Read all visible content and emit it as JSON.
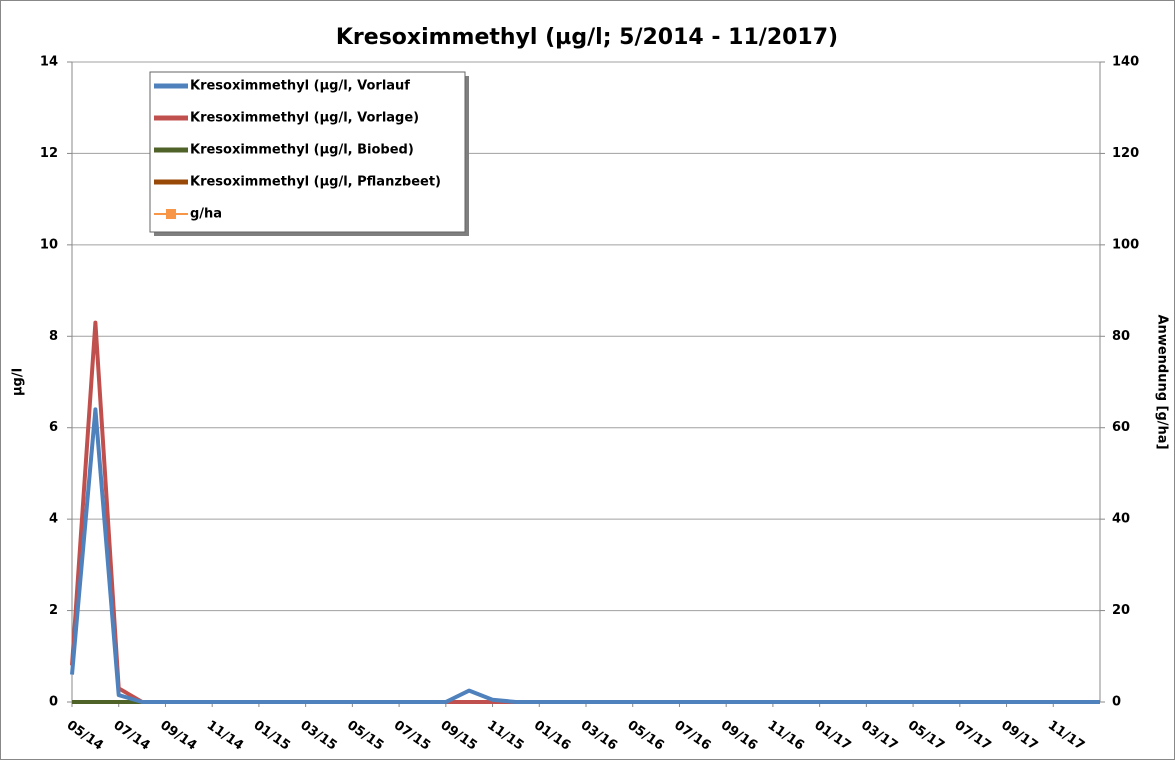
{
  "chart_data": {
    "type": "line",
    "title": "Kresoximmethyl (µg/l; 5/2014 - 11/2017)",
    "y_label": "µg/l",
    "y2_label": "Anwendung [g/ha]",
    "x": [
      "05/14",
      "06/14",
      "07/14",
      "08/14",
      "09/14",
      "10/14",
      "11/14",
      "12/14",
      "01/15",
      "02/15",
      "03/15",
      "04/15",
      "05/15",
      "06/15",
      "07/15",
      "08/15",
      "09/15",
      "10/15",
      "11/15",
      "12/15",
      "01/16",
      "02/16",
      "03/16",
      "04/16",
      "05/16",
      "06/16",
      "07/16",
      "08/16",
      "09/16",
      "10/16",
      "11/16",
      "12/16",
      "01/17",
      "02/17",
      "03/17",
      "04/17",
      "05/17",
      "06/17",
      "07/17",
      "08/17",
      "09/17",
      "10/17",
      "11/17",
      "12/17",
      "01/18"
    ],
    "xticks": [
      "05/14",
      "07/14",
      "09/14",
      "11/14",
      "01/15",
      "03/15",
      "05/15",
      "07/15",
      "09/15",
      "11/15",
      "01/16",
      "03/16",
      "05/16",
      "07/16",
      "09/16",
      "11/16",
      "01/17",
      "03/17",
      "05/17",
      "07/17",
      "09/17",
      "11/17"
    ],
    "ylim": [
      0,
      14
    ],
    "yticks": [
      0,
      2,
      4,
      6,
      8,
      10,
      12,
      14
    ],
    "y2lim": [
      0,
      140
    ],
    "y2ticks": [
      0,
      20,
      40,
      60,
      80,
      100,
      120,
      140
    ],
    "grid": true,
    "series": [
      {
        "name": "Kresoximmethyl (µg/l, Vorlauf",
        "color": "#4f81bd",
        "values": [
          0.6,
          6.4,
          0.15,
          0,
          0,
          0,
          0,
          0,
          0,
          0,
          0,
          0,
          0,
          0,
          0,
          0,
          0,
          0.25,
          0.05,
          0,
          0,
          0,
          0,
          0,
          0,
          0,
          0,
          0,
          0,
          0,
          0,
          0,
          0,
          0,
          0,
          0,
          0,
          0,
          0,
          0,
          0,
          0,
          0,
          0,
          0
        ]
      },
      {
        "name": "Kresoximmethyl (µg/l, Vorlage)",
        "color": "#c0504d",
        "values": [
          0.8,
          8.3,
          0.3,
          0,
          0,
          0,
          0,
          0,
          0,
          0,
          0,
          0,
          0,
          0,
          0,
          0,
          0,
          0,
          0,
          0,
          0,
          0,
          0,
          0,
          0,
          0,
          0,
          0,
          0,
          0,
          0,
          0,
          0,
          0,
          0,
          0,
          0,
          0,
          0,
          0,
          0,
          0,
          0,
          0,
          0
        ]
      },
      {
        "name": "Kresoximmethyl (µg/l, Biobed)",
        "color": "#4f6228",
        "values": [
          0,
          0,
          0,
          0,
          0,
          0,
          0,
          0,
          0,
          0,
          0,
          0,
          0,
          0,
          0,
          0,
          0,
          0,
          0,
          0,
          0,
          0,
          0,
          0,
          0,
          0,
          0,
          0,
          0,
          0,
          0,
          0,
          0,
          0,
          0,
          0,
          0,
          0,
          0,
          0,
          0,
          0,
          0,
          0,
          0
        ]
      },
      {
        "name": "Kresoximmethyl (µg/l, Pflanzbeet)",
        "color": "#984807",
        "values": [
          0,
          0,
          0,
          0,
          0,
          0,
          0,
          0,
          0,
          0,
          0,
          0,
          0,
          0,
          0,
          0,
          0,
          0,
          0,
          0,
          0,
          0,
          0,
          0,
          0,
          0,
          0,
          0,
          0,
          0,
          0,
          0,
          0,
          0,
          0,
          0,
          0,
          0,
          0,
          0,
          0,
          0,
          0,
          0,
          0
        ]
      },
      {
        "name": "g/ha",
        "color": "#f79646",
        "axis": "y2",
        "marker": "square",
        "values": [
          null,
          null,
          null,
          null,
          null,
          null,
          null,
          null,
          null,
          null,
          null,
          null,
          null,
          null,
          null,
          null,
          null,
          null,
          null,
          null,
          null,
          null,
          null,
          null,
          null,
          null,
          null,
          null,
          null,
          null,
          null,
          null,
          null,
          null,
          null,
          null,
          null,
          null,
          null,
          null,
          null,
          null,
          null,
          null,
          null
        ]
      }
    ]
  }
}
